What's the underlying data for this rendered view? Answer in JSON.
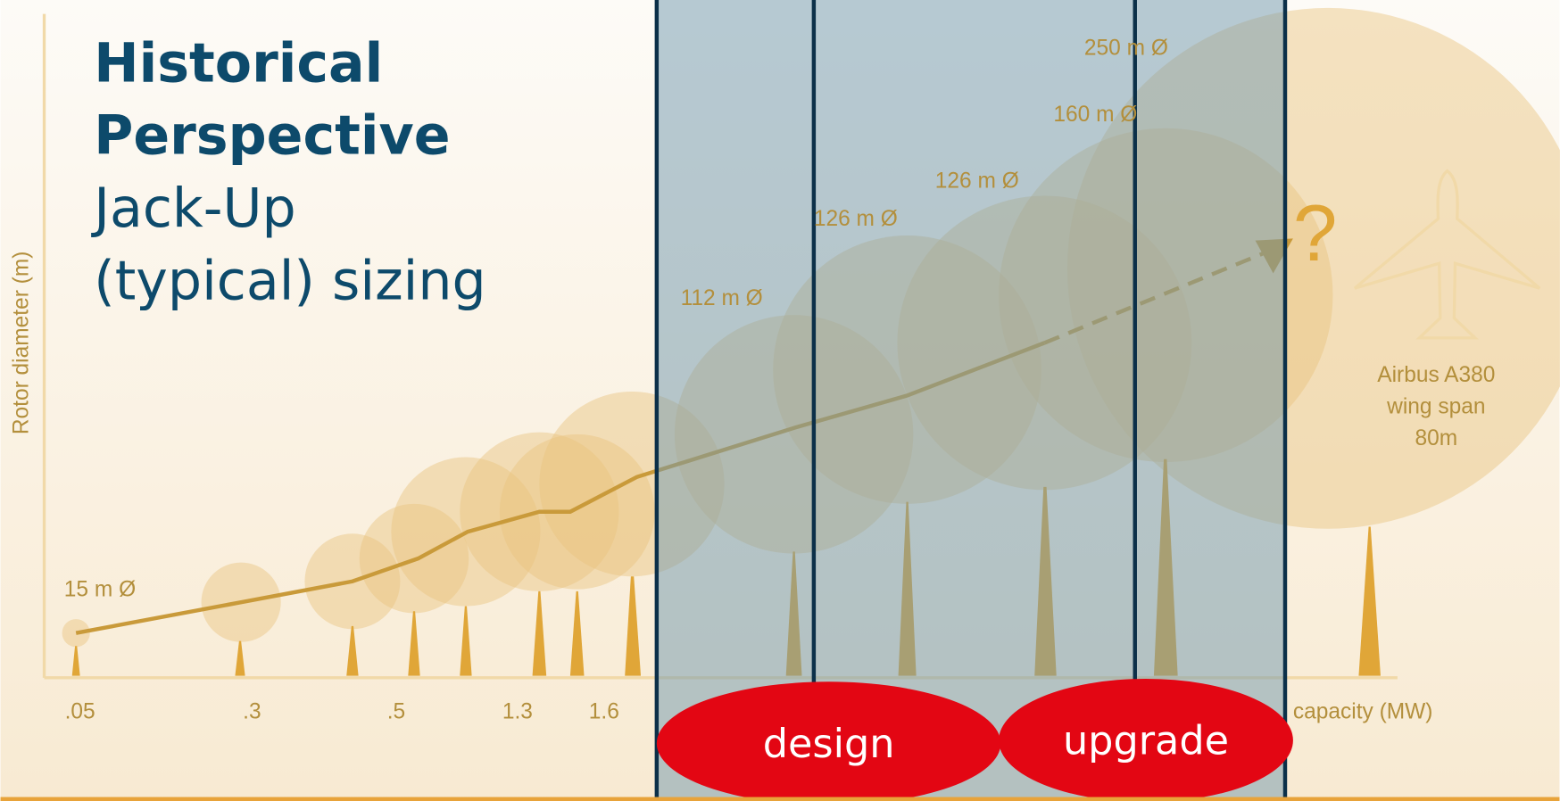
{
  "slide": {
    "title": {
      "line1": "Historical",
      "line2": "Perspective",
      "line3": "Jack-Up",
      "line4": "(typical) sizing"
    },
    "y_axis_label": "Rotor diameter (m)",
    "x_labels": [
      ".05",
      ".3",
      ".5",
      "1.3",
      "1.6"
    ],
    "x_axis_label": "capacity (MW)",
    "diameter_labels": [
      "15 m Ø",
      "112 m Ø",
      "126 m Ø",
      "126 m Ø",
      "160 m Ø",
      "250 m Ø"
    ],
    "question": "?",
    "airbus": [
      "Airbus A380",
      "wing span",
      "80m"
    ],
    "buttons": {
      "design": "design",
      "upgrade": "upgrade"
    }
  }
}
